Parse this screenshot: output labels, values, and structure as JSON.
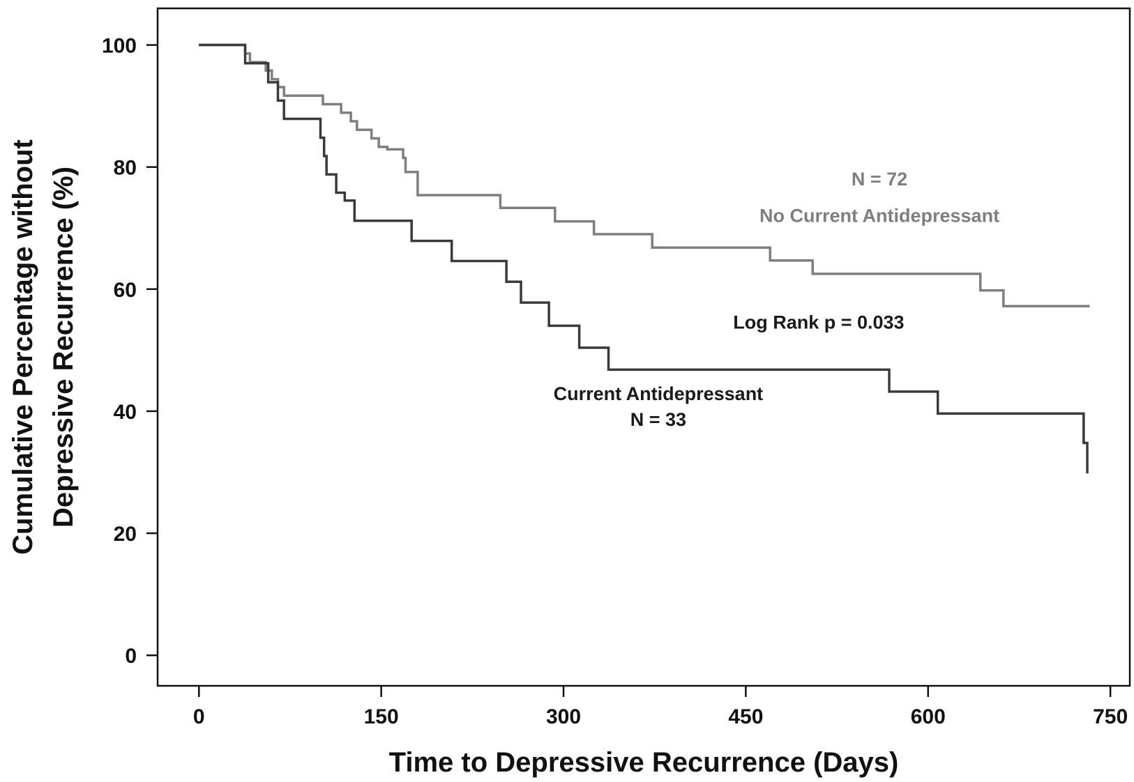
{
  "chart_data": {
    "type": "line",
    "step": true,
    "xlabel": "Time to Depressive Recurrence (Days)",
    "ylabel_line1": "Cumulative Percentage without",
    "ylabel_line2": "Depressive Recurrence (%)",
    "xlim": [
      -34,
      766
    ],
    "ylim": [
      -5,
      106
    ],
    "xticks": [
      0,
      150,
      300,
      450,
      600,
      750
    ],
    "yticks": [
      0,
      20,
      40,
      60,
      80,
      100
    ],
    "grid": false,
    "series": [
      {
        "name": "No Current Antidepressant",
        "color": "#7f7f7f",
        "points": [
          [
            0,
            100
          ],
          [
            38,
            100
          ],
          [
            38,
            98.6
          ],
          [
            42,
            98.6
          ],
          [
            42,
            97.2
          ],
          [
            55,
            97.2
          ],
          [
            55,
            95.8
          ],
          [
            60,
            95.8
          ],
          [
            60,
            94.4
          ],
          [
            65,
            94.4
          ],
          [
            65,
            93.1
          ],
          [
            70,
            93.1
          ],
          [
            70,
            91.7
          ],
          [
            102,
            91.7
          ],
          [
            102,
            90.3
          ],
          [
            117,
            90.3
          ],
          [
            117,
            88.9
          ],
          [
            125,
            88.9
          ],
          [
            125,
            87.5
          ],
          [
            130,
            87.5
          ],
          [
            130,
            86.1
          ],
          [
            142,
            86.1
          ],
          [
            142,
            84.7
          ],
          [
            148,
            84.7
          ],
          [
            148,
            83.3
          ],
          [
            155,
            83.3
          ],
          [
            155,
            82.9
          ],
          [
            168,
            82.9
          ],
          [
            168,
            81.5
          ],
          [
            170,
            81.5
          ],
          [
            170,
            79.2
          ],
          [
            180,
            79.2
          ],
          [
            180,
            75.4
          ],
          [
            248,
            75.4
          ],
          [
            248,
            73.3
          ],
          [
            293,
            73.3
          ],
          [
            293,
            71.1
          ],
          [
            325,
            71.1
          ],
          [
            325,
            69.0
          ],
          [
            373,
            69.0
          ],
          [
            373,
            66.8
          ],
          [
            470,
            66.8
          ],
          [
            470,
            64.7
          ],
          [
            505,
            64.7
          ],
          [
            505,
            62.5
          ],
          [
            643,
            62.5
          ],
          [
            643,
            59.8
          ],
          [
            662,
            59.8
          ],
          [
            662,
            57.2
          ],
          [
            733,
            57.2
          ]
        ]
      },
      {
        "name": "Current Antidepressant",
        "color": "#3a3a3a",
        "points": [
          [
            0,
            100
          ],
          [
            38,
            100
          ],
          [
            38,
            97.0
          ],
          [
            57,
            97.0
          ],
          [
            57,
            93.9
          ],
          [
            65,
            93.9
          ],
          [
            65,
            90.9
          ],
          [
            70,
            90.9
          ],
          [
            70,
            87.9
          ],
          [
            100,
            87.9
          ],
          [
            100,
            84.8
          ],
          [
            103,
            84.8
          ],
          [
            103,
            81.8
          ],
          [
            105,
            81.8
          ],
          [
            105,
            78.8
          ],
          [
            113,
            78.8
          ],
          [
            113,
            75.8
          ],
          [
            120,
            75.8
          ],
          [
            120,
            74.5
          ],
          [
            128,
            74.5
          ],
          [
            128,
            71.2
          ],
          [
            175,
            71.2
          ],
          [
            175,
            67.9
          ],
          [
            208,
            67.9
          ],
          [
            208,
            64.6
          ],
          [
            253,
            64.6
          ],
          [
            253,
            61.2
          ],
          [
            265,
            61.2
          ],
          [
            265,
            57.8
          ],
          [
            288,
            57.8
          ],
          [
            288,
            54.0
          ],
          [
            313,
            54.0
          ],
          [
            313,
            50.4
          ],
          [
            337,
            50.4
          ],
          [
            337,
            46.8
          ],
          [
            568,
            46.8
          ],
          [
            568,
            43.2
          ],
          [
            608,
            43.2
          ],
          [
            608,
            39.6
          ],
          [
            728,
            39.6
          ],
          [
            728,
            34.8
          ],
          [
            731,
            34.8
          ],
          [
            731,
            29.8
          ]
        ]
      }
    ],
    "annotations": [
      {
        "text": "N = 72",
        "x": 560,
        "y": 77,
        "color": "#7f7f7f"
      },
      {
        "text": "No Current Antidepressant",
        "x": 560,
        "y": 71,
        "color": "#7f7f7f"
      },
      {
        "text": "Log Rank p = 0.033",
        "x": 510,
        "y": 53.5,
        "color": "#1a1a1a"
      },
      {
        "text": "Current Antidepressant",
        "x": 378,
        "y": 41.8,
        "color": "#1a1a1a"
      },
      {
        "text": "N = 33",
        "x": 378,
        "y": 37.6,
        "color": "#1a1a1a"
      }
    ]
  }
}
